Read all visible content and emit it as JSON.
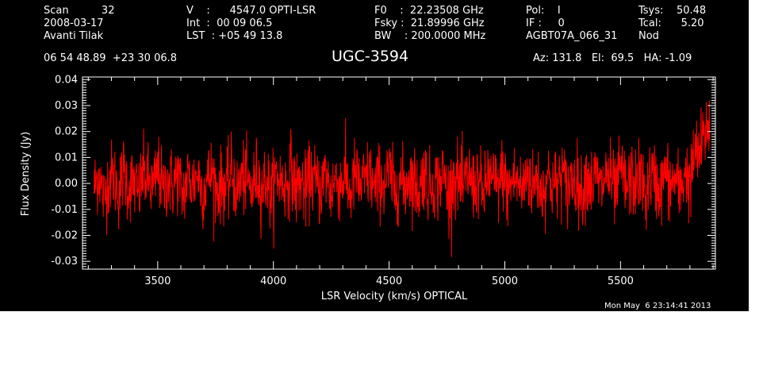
{
  "header": {
    "col1": [
      "Scan          32",
      "2008-03-17",
      "Avanti Tilak"
    ],
    "col2": [
      "V    :      4547.0 OPTI-LSR",
      "Int  :  00 09 06.5",
      "LST  : +05 49 13.8"
    ],
    "col3": [
      "F0    :  22.23508 GHz",
      "Fsky :  21.89996 GHz",
      "BW    : 200.0000 MHz"
    ],
    "col4": [
      "Pol:    I",
      "IF :     0",
      "AGBT07A_066_31"
    ],
    "col5": [
      "Tsys:    50.48",
      "Tcal:      5.20",
      "Nod"
    ],
    "coords": "06 54 48.89  +23 30 06.8",
    "source": "UGC-3594",
    "azel": "Az: 131.8   El:  69.5   HA: -1.09",
    "timestamp": "Mon May  6 23:14:41 2013"
  },
  "colors": {
    "background": "#000000",
    "axes": "#ffffff",
    "trace": "#ff0000"
  },
  "chart_data": {
    "type": "line",
    "title": "UGC-3594",
    "xlabel": "LSR Velocity (km/s) OPTICAL",
    "ylabel": "Flux Density (Jy)",
    "xlim": [
      3175,
      5910
    ],
    "ylim": [
      -0.033,
      0.041
    ],
    "xticks": [
      3500,
      4000,
      4500,
      5000,
      5500
    ],
    "xtick_labels": [
      "3500",
      "4000",
      "4500",
      "5000",
      "5500"
    ],
    "yticks": [
      -0.03,
      -0.02,
      -0.01,
      0.0,
      0.01,
      0.02,
      0.03,
      0.04
    ],
    "ytick_labels": [
      "-0.03",
      "-0.02",
      "-0.01",
      "0.00",
      "0.01",
      "0.02",
      "0.03",
      "0.04"
    ],
    "grid": false,
    "series": [
      {
        "color": "#ff0000",
        "x_start": 3225,
        "x_end": 5885,
        "noise_rms": 0.007,
        "y": [
          -0.005,
          0.012,
          -0.018,
          0.006,
          0.009,
          -0.011,
          0.014,
          -0.004,
          0.002,
          -0.013,
          0.011,
          0.003,
          -0.007,
          0.016,
          -0.009,
          0.005,
          -0.002,
          0.01,
          -0.014,
          0.007,
          -0.001,
          0.012,
          -0.008,
          0.004,
          0.013,
          -0.01,
          0.001,
          -0.006,
          0.015,
          -0.012,
          0.008,
          0.003,
          -0.009,
          0.011,
          -0.005,
          0.006,
          -0.016,
          0.009,
          0.002,
          -0.003,
          0.017,
          -0.008,
          0.004,
          -0.011,
          0.01,
          0.001,
          -0.007,
          0.013,
          -0.01,
          0.005,
          0.0,
          0.008,
          -0.013,
          0.011,
          -0.004,
          0.003,
          0.012,
          -0.009,
          0.006,
          -0.002,
          0.014,
          -0.012,
          0.007,
          -0.006,
          0.009,
          0.002,
          -0.01,
          0.016,
          -0.007,
          0.004,
          -0.001,
          0.011,
          -0.014,
          0.008,
          0.003,
          -0.008,
          0.012,
          -0.005,
          0.006,
          -0.015,
          0.01,
          0.001,
          -0.004,
          0.013,
          -0.011,
          0.005,
          0.002,
          -0.009,
          0.015,
          -0.006,
          0.007,
          -0.012,
          0.009,
          0.0,
          -0.003,
          0.014,
          -0.01,
          0.006,
          0.004,
          -0.013,
          0.011,
          -0.002,
          0.008,
          -0.007,
          0.012,
          0.003,
          -0.011,
          0.017,
          -0.006,
          0.005,
          -0.001,
          0.01,
          -0.016,
          0.009,
          0.002,
          -0.008,
          0.013,
          -0.004,
          0.006,
          -0.01,
          0.015,
          -0.005,
          0.02,
          0.011,
          0.022,
          0.031
        ]
      }
    ]
  }
}
